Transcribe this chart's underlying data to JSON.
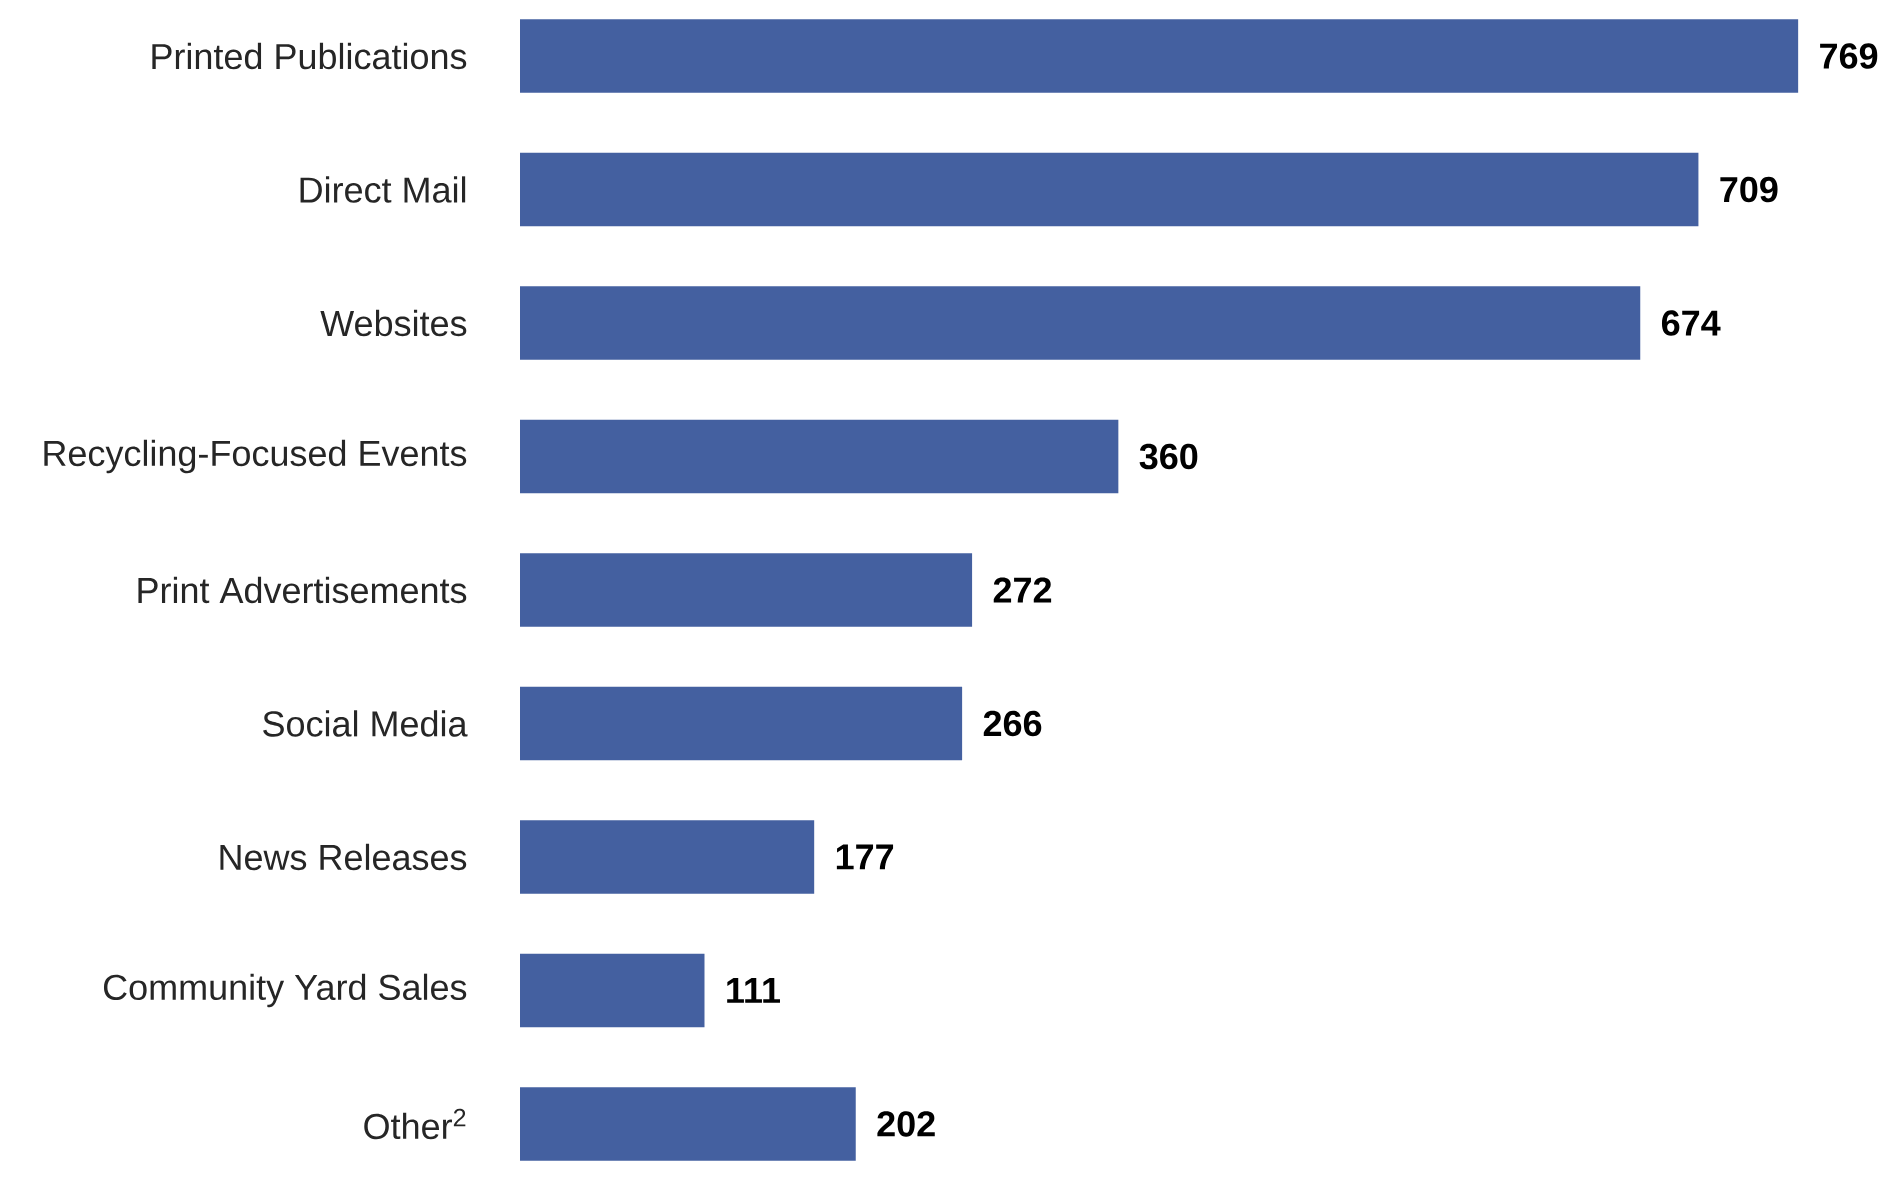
{
  "chart_data": {
    "type": "bar",
    "orientation": "horizontal",
    "categories": [
      "Printed Publications",
      "Direct Mail",
      "Websites",
      "Recycling-Focused Events",
      "Print Advertisements",
      "Social Media",
      "News Releases",
      "Community Yard Sales",
      "Other$^{2}$"
    ],
    "values": [
      769,
      709,
      674,
      360,
      272,
      266,
      177,
      111,
      202
    ],
    "color": "#4460a0",
    "data_labels": true
  }
}
